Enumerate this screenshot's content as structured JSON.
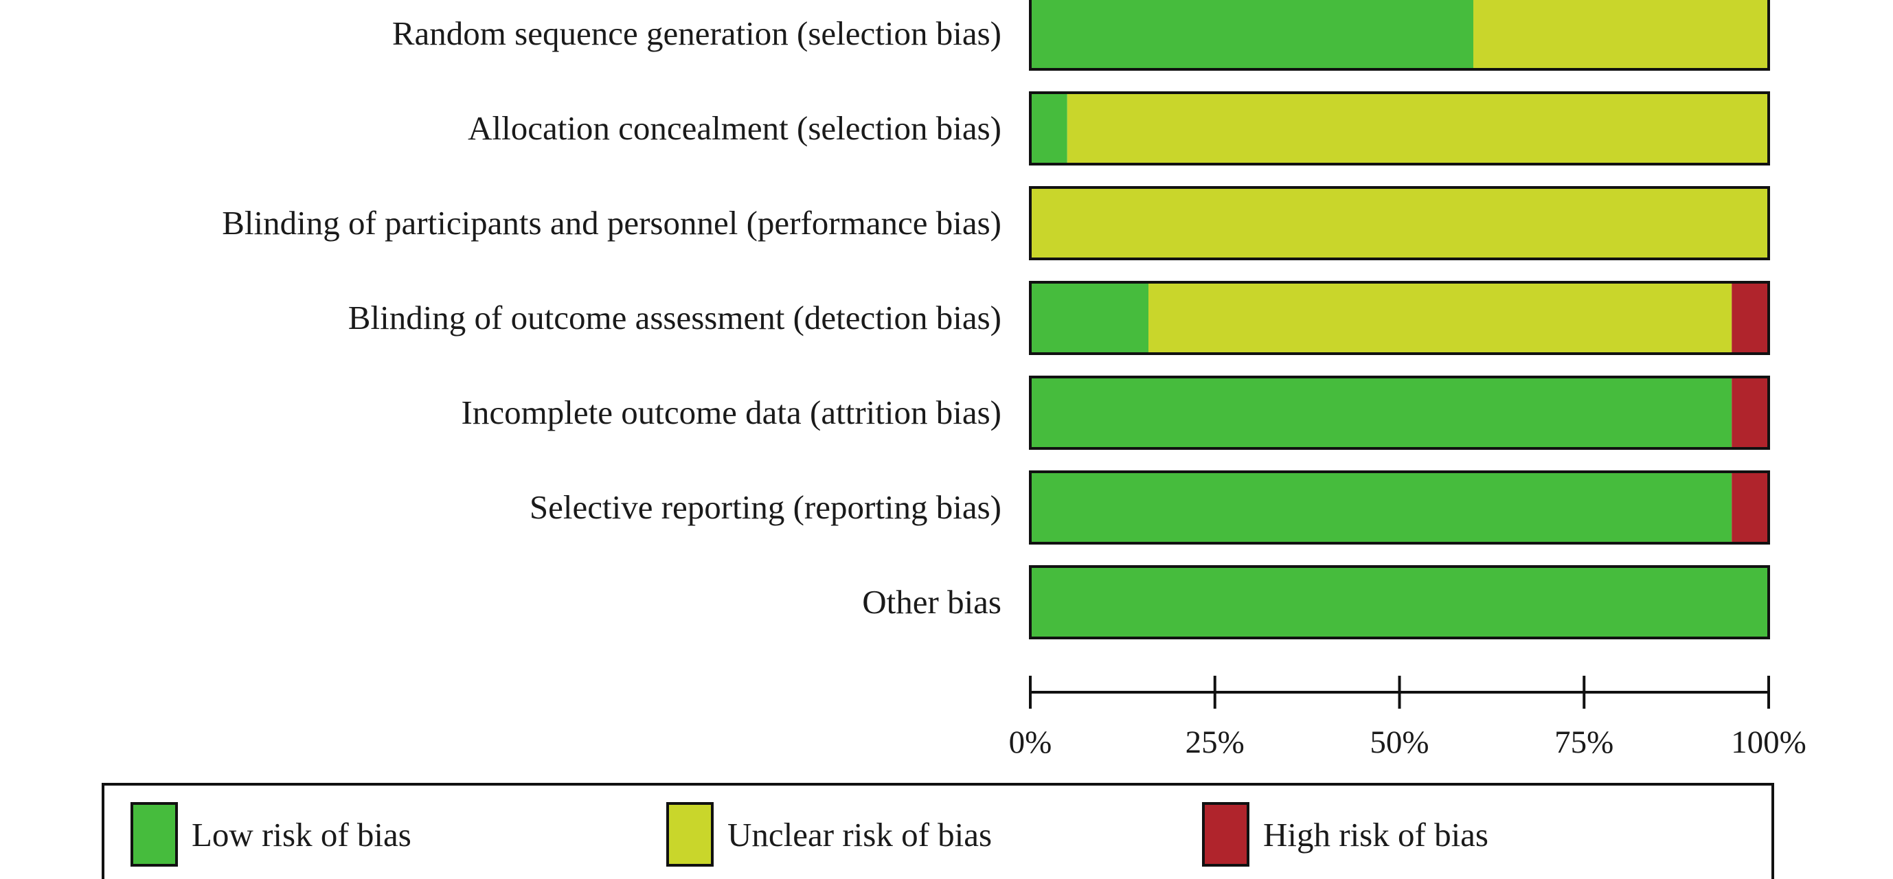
{
  "chart_data": {
    "type": "bar",
    "orientation": "horizontal",
    "stacked": true,
    "title": "",
    "xlabel": "",
    "ylabel": "",
    "xlim": [
      0,
      100
    ],
    "grid": false,
    "legend_position": "bottom",
    "categories": [
      "Random sequence generation (selection bias)",
      "Allocation concealment (selection bias)",
      "Blinding of participants and personnel (performance bias)",
      "Blinding of outcome assessment (detection bias)",
      "Incomplete outcome data (attrition bias)",
      "Selective reporting (reporting bias)",
      "Other bias"
    ],
    "series": [
      {
        "name": "Low risk of bias",
        "color": "#46bc3d",
        "values": [
          60,
          5,
          0,
          16,
          95,
          95,
          100
        ]
      },
      {
        "name": "Unclear risk of bias",
        "color": "#c9d62b",
        "values": [
          40,
          95,
          100,
          79,
          0,
          0,
          0
        ]
      },
      {
        "name": "High risk of bias",
        "color": "#b0242c",
        "values": [
          0,
          0,
          0,
          5,
          5,
          5,
          0
        ]
      }
    ],
    "x_ticks": [
      0,
      25,
      50,
      75,
      100
    ],
    "x_tick_labels": [
      "0%",
      "25%",
      "50%",
      "75%",
      "100%"
    ]
  }
}
